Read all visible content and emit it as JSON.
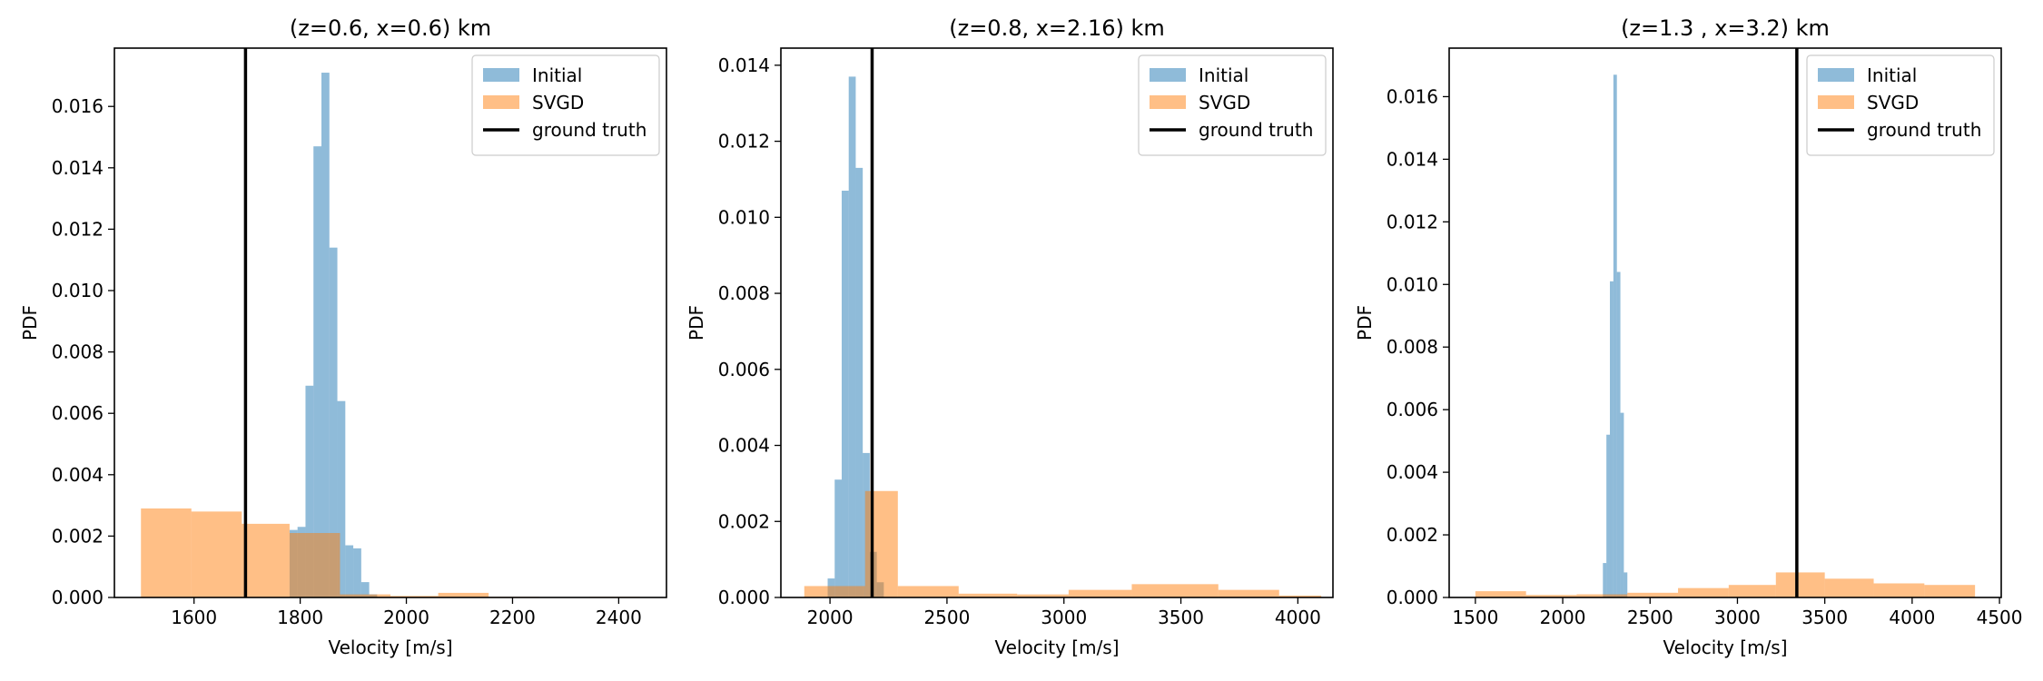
{
  "colors": {
    "initial": "#1f77b4",
    "svgd": "#ff7f0e",
    "ground_truth": "#000000",
    "hist_alpha": 0.5
  },
  "chart_data": [
    {
      "type": "bar",
      "title": "(z=0.6, x=0.6) km",
      "xlabel": "Velocity [m/s]",
      "ylabel": "PDF",
      "xlim": [
        1450,
        2490
      ],
      "ylim": [
        0,
        0.0179
      ],
      "xticks": [
        1600,
        1800,
        2000,
        2200,
        2400
      ],
      "yticks": [
        0,
        0.002,
        0.004,
        0.006,
        0.008,
        0.01,
        0.012,
        0.014,
        0.016
      ],
      "ytick_labels": [
        "0.000",
        "0.002",
        "0.004",
        "0.006",
        "0.008",
        "0.010",
        "0.012",
        "0.014",
        "0.016"
      ],
      "legend_position": "upper right",
      "ground_truth": 1697,
      "series": [
        {
          "name": "Initial",
          "bins": [
            [
              1780,
              1795,
              0.0022
            ],
            [
              1795,
              1810,
              0.0023
            ],
            [
              1810,
              1825,
              0.0069
            ],
            [
              1825,
              1840,
              0.0147
            ],
            [
              1840,
              1855,
              0.0171
            ],
            [
              1855,
              1870,
              0.0114
            ],
            [
              1870,
              1885,
              0.0064
            ],
            [
              1885,
              1900,
              0.0017
            ],
            [
              1900,
              1915,
              0.0016
            ],
            [
              1915,
              1930,
              0.0005
            ],
            [
              1930,
              1945,
              0.0001
            ]
          ]
        },
        {
          "name": "SVGD",
          "bins": [
            [
              1500,
              1595,
              0.0029
            ],
            [
              1595,
              1690,
              0.0028
            ],
            [
              1690,
              1780,
              0.0024
            ],
            [
              1780,
              1875,
              0.0021
            ],
            [
              1875,
              1970,
              0.0001
            ],
            [
              1970,
              2060,
              5e-05
            ],
            [
              2060,
              2155,
              0.00015
            ],
            [
              2155,
              2250,
              2e-05
            ],
            [
              2345,
              2440,
              2e-05
            ]
          ]
        }
      ],
      "ground_truth_label": "ground truth"
    },
    {
      "type": "bar",
      "title": "(z=0.8, x=2.16) km",
      "xlabel": "Velocity [m/s]",
      "ylabel": "PDF",
      "xlim": [
        1790,
        4150
      ],
      "ylim": [
        0,
        0.01445
      ],
      "xticks": [
        2000,
        2500,
        3000,
        3500,
        4000
      ],
      "yticks": [
        0,
        0.002,
        0.004,
        0.006,
        0.008,
        0.01,
        0.012,
        0.014
      ],
      "ytick_labels": [
        "0.000",
        "0.002",
        "0.004",
        "0.006",
        "0.008",
        "0.010",
        "0.012",
        "0.014"
      ],
      "legend_position": "upper right",
      "ground_truth": 2180,
      "series": [
        {
          "name": "Initial",
          "bins": [
            [
              1990,
              2020,
              0.0005
            ],
            [
              2020,
              2050,
              0.0031
            ],
            [
              2050,
              2080,
              0.0107
            ],
            [
              2080,
              2110,
              0.0137
            ],
            [
              2110,
              2140,
              0.0113
            ],
            [
              2140,
              2170,
              0.0038
            ],
            [
              2170,
              2200,
              0.0012
            ],
            [
              2200,
              2230,
              0.0004
            ]
          ]
        },
        {
          "name": "SVGD",
          "bins": [
            [
              1890,
              2020,
              0.0003
            ],
            [
              2020,
              2150,
              0.0003
            ],
            [
              2150,
              2290,
              0.0028
            ],
            [
              2290,
              2550,
              0.0003
            ],
            [
              2550,
              2800,
              0.0001
            ],
            [
              2800,
              3020,
              8e-05
            ],
            [
              3020,
              3290,
              0.0002
            ],
            [
              3290,
              3660,
              0.00035
            ],
            [
              3660,
              3920,
              0.0002
            ],
            [
              3920,
              4100,
              5e-05
            ]
          ]
        }
      ],
      "ground_truth_label": "ground truth"
    },
    {
      "type": "bar",
      "title": "(z=1.3 , x=3.2) km",
      "xlabel": "Velocity [m/s]",
      "ylabel": "PDF",
      "xlim": [
        1350,
        4510
      ],
      "ylim": [
        0,
        0.01755
      ],
      "xticks": [
        1500,
        2000,
        2500,
        3000,
        3500,
        4000,
        4500
      ],
      "yticks": [
        0,
        0.002,
        0.004,
        0.006,
        0.008,
        0.01,
        0.012,
        0.014,
        0.016
      ],
      "ytick_labels": [
        "0.000",
        "0.002",
        "0.004",
        "0.006",
        "0.008",
        "0.010",
        "0.012",
        "0.014",
        "0.016"
      ],
      "legend_position": "upper right",
      "ground_truth": 3340,
      "series": [
        {
          "name": "Initial",
          "bins": [
            [
              2230,
              2250,
              0.0011
            ],
            [
              2250,
              2270,
              0.0052
            ],
            [
              2270,
              2290,
              0.0101
            ],
            [
              2290,
              2310,
              0.0167
            ],
            [
              2310,
              2330,
              0.0104
            ],
            [
              2330,
              2350,
              0.0059
            ],
            [
              2350,
              2370,
              0.0008
            ]
          ]
        },
        {
          "name": "SVGD",
          "bins": [
            [
              1500,
              1790,
              0.0002
            ],
            [
              1790,
              2080,
              8e-05
            ],
            [
              2080,
              2370,
              0.0001
            ],
            [
              2370,
              2660,
              0.00015
            ],
            [
              2660,
              2950,
              0.0003
            ],
            [
              2950,
              3220,
              0.0004
            ],
            [
              3220,
              3500,
              0.0008
            ],
            [
              3500,
              3780,
              0.0006
            ],
            [
              3780,
              4070,
              0.00045
            ],
            [
              4070,
              4360,
              0.0004
            ]
          ]
        }
      ],
      "ground_truth_label": "ground truth"
    }
  ]
}
